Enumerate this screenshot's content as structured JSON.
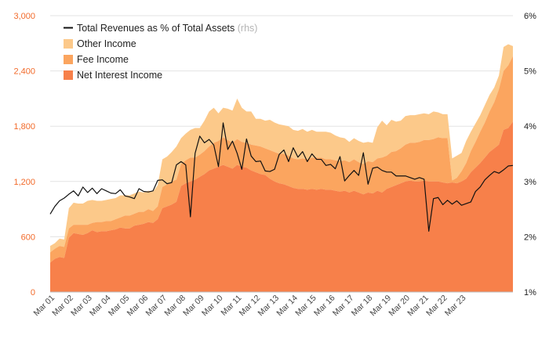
{
  "chart_data": {
    "type": "area",
    "title": "",
    "xlabel": "",
    "ylabel": "",
    "ylim_left": [
      0,
      3000
    ],
    "ylim_right": [
      1,
      6
    ],
    "yticks_left": [
      "0",
      "600",
      "1,200",
      "1,800",
      "2,400",
      "3,000"
    ],
    "yticks_right": [
      "1%",
      "2%",
      "3%",
      "4%",
      "5%",
      "6%"
    ],
    "x_labels": [
      "Mar 01",
      "Mar 02",
      "Mar 03",
      "Mar 04",
      "Mar 05",
      "Mar 06",
      "Mar 07",
      "Mar 08",
      "Mar 09",
      "Mar 10",
      "Mar 11",
      "Mar 12",
      "Mar 13",
      "Mar 14",
      "Mar 15",
      "Mar 16",
      "Mar 17",
      "Mar 18",
      "Mar 19",
      "Mar 20",
      "Mar 21",
      "Mar 22",
      "Mar 23"
    ],
    "legend": {
      "line": "Total Revenues as % of Total Assets",
      "line_note": "(rhs)",
      "other": "Other Income",
      "fee": "Fee Income",
      "nii": "Net Interest Income"
    },
    "colors": {
      "nii": "#f7804a",
      "fee": "#fba55f",
      "other": "#fcc98a",
      "line": "#111111"
    },
    "series": [
      {
        "name": "Net Interest Income",
        "axis": "left",
        "stacked": true,
        "values": [
          320,
          360,
          380,
          370,
          590,
          640,
          630,
          620,
          640,
          670,
          650,
          660,
          660,
          670,
          680,
          700,
          690,
          690,
          720,
          730,
          740,
          760,
          750,
          790,
          910,
          930,
          950,
          980,
          1150,
          1180,
          1200,
          1220,
          1250,
          1280,
          1320,
          1340,
          1360,
          1380,
          1360,
          1340,
          1380,
          1360,
          1350,
          1320,
          1300,
          1280,
          1270,
          1230,
          1200,
          1180,
          1170,
          1150,
          1130,
          1120,
          1120,
          1110,
          1120,
          1110,
          1120,
          1110,
          1110,
          1100,
          1090,
          1100,
          1080,
          1100,
          1080,
          1060,
          1080,
          1070,
          1100,
          1080,
          1120,
          1140,
          1160,
          1180,
          1200,
          1210,
          1200,
          1200,
          1210,
          1200,
          1200,
          1200,
          1190,
          1180,
          1190,
          1180,
          1200,
          1230,
          1300,
          1350,
          1400,
          1460,
          1520,
          1560,
          1600,
          1760,
          1780,
          1850
        ]
      },
      {
        "name": "Fee Income",
        "axis": "left",
        "stacked": true,
        "values": [
          110,
          110,
          120,
          120,
          100,
          90,
          100,
          110,
          90,
          80,
          110,
          100,
          110,
          100,
          110,
          110,
          140,
          140,
          130,
          140,
          130,
          140,
          130,
          140,
          230,
          240,
          250,
          240,
          240,
          250,
          260,
          240,
          240,
          250,
          260,
          280,
          280,
          300,
          290,
          280,
          280,
          270,
          270,
          280,
          290,
          300,
          290,
          310,
          320,
          320,
          330,
          330,
          320,
          320,
          330,
          330,
          340,
          350,
          340,
          330,
          330,
          330,
          330,
          330,
          330,
          340,
          330,
          330,
          340,
          340,
          350,
          380,
          360,
          380,
          370,
          380,
          400,
          410,
          420,
          430,
          440,
          450,
          460,
          480,
          480,
          490,
          20,
          60,
          110,
          170,
          230,
          280,
          340,
          380,
          440,
          500,
          600,
          640,
          680,
          710
        ]
      },
      {
        "name": "Other Income",
        "axis": "left",
        "stacked": true,
        "values": [
          70,
          60,
          80,
          80,
          220,
          240,
          230,
          230,
          260,
          250,
          230,
          230,
          230,
          240,
          230,
          240,
          220,
          220,
          220,
          220,
          210,
          200,
          210,
          230,
          300,
          300,
          320,
          360,
          280,
          290,
          300,
          320,
          290,
          330,
          380,
          380,
          300,
          320,
          340,
          350,
          440,
          370,
          340,
          360,
          290,
          300,
          300,
          330,
          320,
          320,
          310,
          320,
          310,
          310,
          320,
          300,
          300,
          280,
          280,
          300,
          290,
          270,
          260,
          240,
          220,
          230,
          230,
          230,
          210,
          210,
          340,
          400,
          330,
          350,
          320,
          300,
          310,
          300,
          300,
          300,
          290,
          280,
          300,
          270,
          260,
          260,
          240,
          240,
          200,
          240,
          210,
          200,
          180,
          190,
          180,
          160,
          150,
          260,
          230,
          110
        ]
      },
      {
        "name": "Total Revenues as % of Total Assets",
        "axis": "right",
        "unit": "%",
        "values": [
          2.41,
          2.55,
          2.65,
          2.7,
          2.77,
          2.83,
          2.74,
          2.9,
          2.8,
          2.88,
          2.78,
          2.87,
          2.83,
          2.79,
          2.78,
          2.85,
          2.74,
          2.72,
          2.69,
          2.87,
          2.82,
          2.81,
          2.83,
          3.02,
          3.03,
          2.96,
          2.98,
          3.3,
          3.36,
          3.3,
          2.36,
          3.51,
          3.82,
          3.7,
          3.76,
          3.66,
          3.27,
          4.06,
          3.58,
          3.73,
          3.51,
          3.22,
          3.77,
          3.46,
          3.36,
          3.37,
          3.19,
          3.18,
          3.22,
          3.49,
          3.57,
          3.36,
          3.61,
          3.44,
          3.54,
          3.36,
          3.5,
          3.4,
          3.4,
          3.29,
          3.31,
          3.23,
          3.45,
          3.01,
          3.11,
          3.2,
          3.11,
          3.52,
          2.95,
          3.24,
          3.26,
          3.2,
          3.17,
          3.17,
          3.1,
          3.1,
          3.1,
          3.07,
          3.04,
          3.07,
          3.04,
          2.1,
          2.69,
          2.71,
          2.58,
          2.66,
          2.59,
          2.65,
          2.57,
          2.6,
          2.63,
          2.82,
          2.9,
          3.03,
          3.11,
          3.18,
          3.15,
          3.21,
          3.28,
          3.29
        ]
      }
    ]
  }
}
